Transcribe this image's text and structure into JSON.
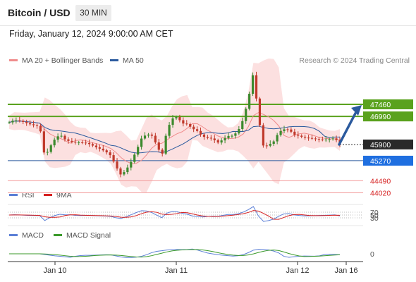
{
  "header": {
    "pair": "Bitcoin / USD",
    "interval": "30 MIN"
  },
  "datetime": "Friday, January 12, 2024 9:00:00 AM CET",
  "legend": {
    "main": [
      {
        "label": "MA 20 + Bollinger Bands",
        "color": "#f08c8c"
      },
      {
        "label": "MA 50",
        "color": "#2b5a9e"
      }
    ],
    "rsi": [
      {
        "label": "RSI",
        "color": "#5b7fd6"
      },
      {
        "label": "9MA",
        "color": "#d62020"
      }
    ],
    "macd": [
      {
        "label": "MACD",
        "color": "#5b7fd6"
      },
      {
        "label": "MACD Signal",
        "color": "#3a9a2a"
      }
    ]
  },
  "research": "Research © 2024 Trading Central",
  "colors": {
    "up": "#3c8a2e",
    "down": "#c0392b",
    "resistance": "#5aa21e",
    "support": "#2b5a9e",
    "target": "#f29a9a",
    "arrow": "#2b5a9e"
  },
  "chart_data": {
    "type": "candlestick",
    "title": "Bitcoin / USD",
    "interval": "30 MIN",
    "price_levels": [
      {
        "label": "47460",
        "value": 47460,
        "kind": "resistance"
      },
      {
        "label": "46990",
        "value": 46990,
        "kind": "resistance"
      },
      {
        "label": "45900",
        "value": 45900,
        "kind": "last"
      },
      {
        "label": "45270",
        "value": 45270,
        "kind": "support"
      },
      {
        "label": "44490",
        "value": 44490,
        "kind": "target"
      },
      {
        "label": "44020",
        "value": 44020,
        "kind": "target"
      }
    ],
    "price_points": [
      46760,
      46850,
      46820,
      46760,
      46690,
      46640,
      46600,
      45400,
      45800,
      46120,
      46290,
      46090,
      46010,
      45980,
      45980,
      45960,
      45900,
      45800,
      45720,
      45620,
      45460,
      45040,
      44700,
      44920,
      45240,
      45660,
      46130,
      46300,
      46260,
      45880,
      45440,
      46450,
      46900,
      46980,
      46720,
      46690,
      46520,
      46420,
      46210,
      46160,
      46120,
      45970,
      46090,
      46230,
      46240,
      46430,
      46880,
      47650,
      48700,
      46950,
      45800,
      45880,
      46020,
      46380,
      46490,
      46480,
      46280,
      46230,
      46170,
      46150,
      46120,
      46090,
      46080,
      46110,
      46150,
      45900
    ],
    "arrow_target": 47460,
    "x_ticks": [
      "Jan 10",
      "Jan 11",
      "Jan 12",
      "Jan 16"
    ],
    "rsi": {
      "levels": [
        70,
        50,
        30
      ]
    },
    "macd": {
      "levels": [
        0
      ]
    }
  }
}
